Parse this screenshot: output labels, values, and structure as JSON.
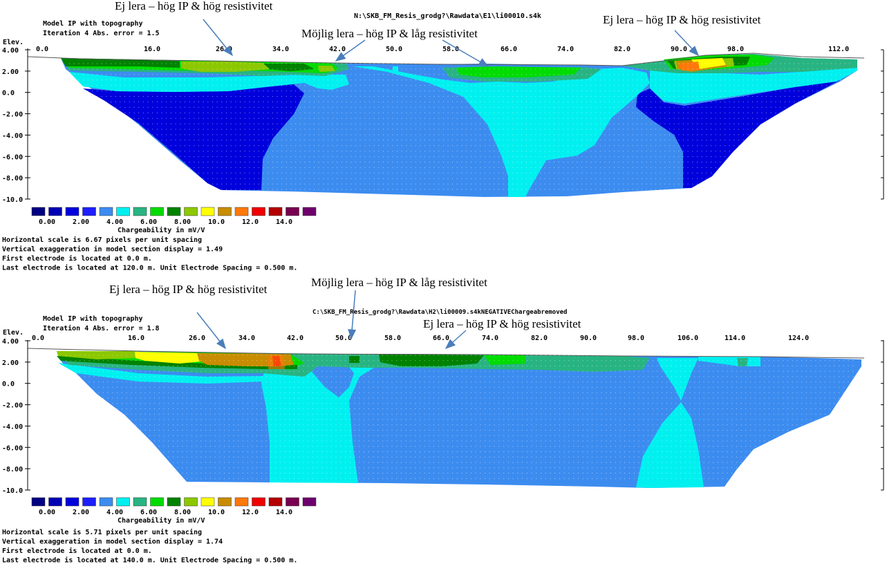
{
  "palette": [
    "#000082",
    "#0000b4",
    "#0000dc",
    "#1e1eff",
    "#3c8cf0",
    "#00f0f0",
    "#28b482",
    "#00dc00",
    "#008200",
    "#8cc800",
    "#ffff00",
    "#c88c00",
    "#ff780a",
    "#f00000",
    "#b40000",
    "#780050",
    "#6e006e"
  ],
  "legend_labels": [
    "0.00",
    "2.00",
    "4.00",
    "6.00",
    "8.00",
    "10.0",
    "12.0",
    "14.0"
  ],
  "legend_title": "Chargeability in mV/V",
  "elev_label": "Elev.",
  "panels": [
    {
      "id": "top",
      "title_line1": "Model IP with topography",
      "title_line2": "Iteration 4 Abs. error = 1.5",
      "file_path": "N:\\SKB_FM_Resis_grodg?\\Rawdata\\E1\\li00010.s4k",
      "y_ticks": [
        "4.00",
        "2.00",
        "0.0",
        "-2.00",
        "-4.00",
        "-6.00",
        "-8.00",
        "-10.0"
      ],
      "x_ticks": [
        "0.0",
        "16.0",
        "26.0",
        "34.0",
        "42.0",
        "50.0",
        "58.0",
        "66.0",
        "74.0",
        "82.0",
        "90.0",
        "98.0",
        "112.0"
      ],
      "info_lines": [
        "Horizontal scale is 6.67 pixels per unit spacing",
        "Vertical exaggeration in model section display = 1.49",
        "First electrode is located at 0.0  m.",
        "Last electrode is located at 120.0 m.    Unit Electrode Spacing = 0.500 m."
      ],
      "annotations": [
        "Ej lera – hög IP  & hög resistivitet",
        "Möjlig lera – hög IP & låg resistivitet",
        "Ej lera – hög IP & hög resistivitet"
      ]
    },
    {
      "id": "bottom",
      "title_line1": "Model IP with topography",
      "title_line2": "Iteration 4 Abs. error = 1.8",
      "file_path": "C:\\SKB_FM_Resis_grodg?\\Rawdata\\H2\\li00009.s4kNEGATIVEChargeabremoved",
      "y_ticks": [
        "4.00",
        "2.00",
        "0.0",
        "-2.00",
        "-4.00",
        "-6.00",
        "-8.00",
        "-10.0"
      ],
      "x_ticks": [
        "0.0",
        "16.0",
        "26.0",
        "34.0",
        "42.0",
        "50.0",
        "58.0",
        "66.0",
        "74.0",
        "82.0",
        "90.0",
        "98.0",
        "106.0",
        "114.0",
        "124.0"
      ],
      "info_lines": [
        "Horizontal scale is 5.71 pixels per unit spacing",
        "Vertical exaggeration in model section display = 1.74",
        "First electrode is located at 0.0  m.",
        "Last electrode is located at 140.0 m.    Unit Electrode Spacing = 0.500 m."
      ],
      "annotations": [
        "Ej lera – hög IP & hög resistivitet",
        "Möjlig lera – hög IP & låg resistivitet",
        "Ej lera – hög IP & hög resistivitet"
      ]
    }
  ],
  "chart_data": [
    {
      "type": "heatmap",
      "title": "Model IP with topography",
      "subtitle": "Iteration 4 Abs. error = 1.5",
      "ylabel": "Elev.",
      "colorbar_label": "Chargeability in mV/V",
      "colorbar_ticks": [
        0,
        2,
        4,
        6,
        8,
        10,
        12,
        14
      ],
      "ylim": [
        -10,
        4
      ],
      "xlim": [
        0,
        120
      ],
      "x_ticks": [
        0,
        16,
        26,
        34,
        42,
        50,
        58,
        66,
        74,
        82,
        90,
        98,
        112
      ]
    },
    {
      "type": "heatmap",
      "title": "Model IP with topography",
      "subtitle": "Iteration 4 Abs. error = 1.8",
      "ylabel": "Elev.",
      "colorbar_label": "Chargeability in mV/V",
      "colorbar_ticks": [
        0,
        2,
        4,
        6,
        8,
        10,
        12,
        14
      ],
      "ylim": [
        -10,
        4
      ],
      "xlim": [
        0,
        140
      ],
      "x_ticks": [
        0,
        16,
        26,
        34,
        42,
        50,
        58,
        66,
        74,
        82,
        90,
        98,
        106,
        114,
        124
      ]
    }
  ]
}
